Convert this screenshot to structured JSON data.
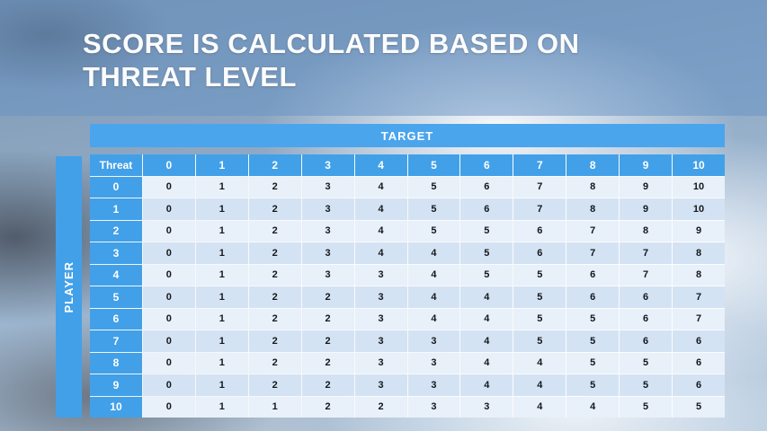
{
  "slide": {
    "title_line1": "SCORE IS CALCULATED BASED ON",
    "title_line2": "THREAT LEVEL"
  },
  "matrix": {
    "target_label": "TARGET",
    "player_label": "PLAYER",
    "corner_label": "Threat",
    "column_headers": [
      "0",
      "1",
      "2",
      "3",
      "4",
      "5",
      "6",
      "7",
      "8",
      "9",
      "10"
    ],
    "row_headers": [
      "0",
      "1",
      "2",
      "3",
      "4",
      "5",
      "6",
      "7",
      "8",
      "9",
      "10"
    ],
    "cells": [
      [
        "0",
        "1",
        "2",
        "3",
        "4",
        "5",
        "6",
        "7",
        "8",
        "9",
        "10"
      ],
      [
        "0",
        "1",
        "2",
        "3",
        "4",
        "5",
        "6",
        "7",
        "8",
        "9",
        "10"
      ],
      [
        "0",
        "1",
        "2",
        "3",
        "4",
        "5",
        "5",
        "6",
        "7",
        "8",
        "9"
      ],
      [
        "0",
        "1",
        "2",
        "3",
        "4",
        "4",
        "5",
        "6",
        "7",
        "7",
        "8"
      ],
      [
        "0",
        "1",
        "2",
        "3",
        "3",
        "4",
        "5",
        "5",
        "6",
        "7",
        "8"
      ],
      [
        "0",
        "1",
        "2",
        "2",
        "3",
        "4",
        "4",
        "5",
        "6",
        "6",
        "7"
      ],
      [
        "0",
        "1",
        "2",
        "2",
        "3",
        "4",
        "4",
        "5",
        "5",
        "6",
        "7"
      ],
      [
        "0",
        "1",
        "2",
        "2",
        "3",
        "3",
        "4",
        "5",
        "5",
        "6",
        "6"
      ],
      [
        "0",
        "1",
        "2",
        "2",
        "3",
        "3",
        "4",
        "4",
        "5",
        "5",
        "6"
      ],
      [
        "0",
        "1",
        "2",
        "2",
        "3",
        "3",
        "4",
        "4",
        "5",
        "5",
        "6"
      ],
      [
        "0",
        "1",
        "1",
        "2",
        "2",
        "3",
        "3",
        "4",
        "4",
        "5",
        "5"
      ]
    ]
  },
  "colors": {
    "accent_blue": "#42a0e8",
    "accent_blue_light": "#4aa5ec",
    "row_light": "#e8f0f9",
    "row_dark": "#d4e3f4",
    "title_text": "#fbfcfd"
  }
}
